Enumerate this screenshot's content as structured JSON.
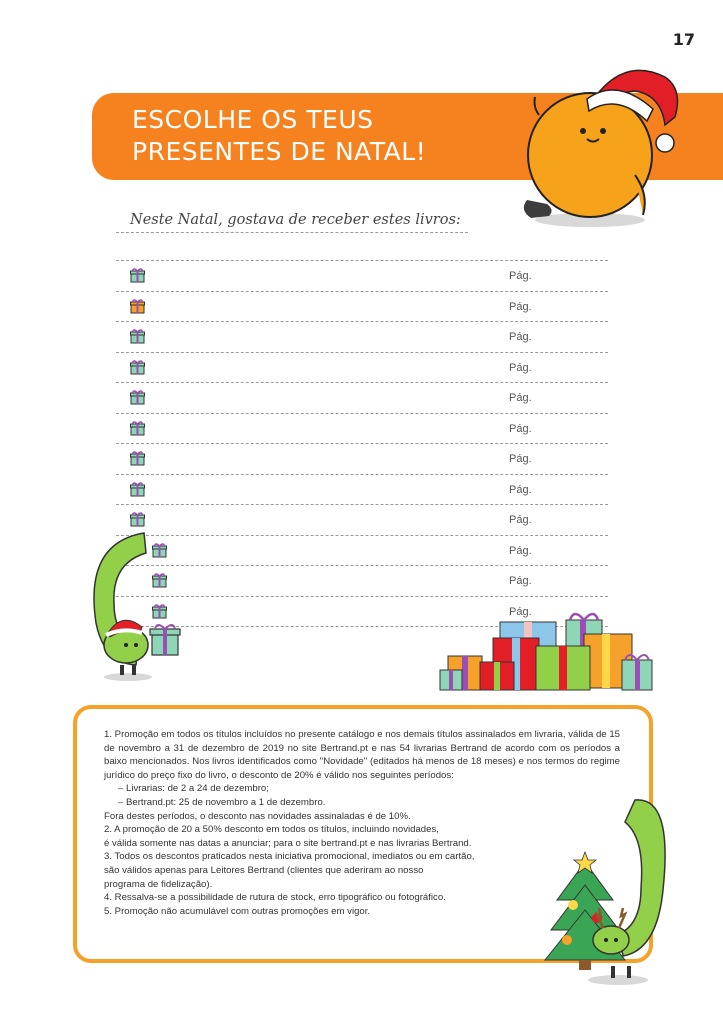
{
  "page": {
    "number": "17"
  },
  "banner": {
    "title_line1": "ESCOLHE OS TEUS",
    "title_line2": "PRESENTES DE NATAL!"
  },
  "wishlist": {
    "heading": "Neste Natal, gostava de receber estes livros:",
    "rows": [
      {
        "page_label": "Pág."
      },
      {
        "page_label": "Pág."
      },
      {
        "page_label": "Pág."
      },
      {
        "page_label": "Pág."
      },
      {
        "page_label": "Pág."
      },
      {
        "page_label": "Pág."
      },
      {
        "page_label": "Pág."
      },
      {
        "page_label": "Pág."
      },
      {
        "page_label": "Pág."
      },
      {
        "page_label": "Pág."
      },
      {
        "page_label": "Pág."
      },
      {
        "page_label": "Pág."
      }
    ]
  },
  "terms": {
    "lines": [
      "1. Promoção em todos os títulos incluídos no presente catálogo e nos demais títulos assinalados em livraria, válida de 15 de novembro a 31 de dezembro de 2019 no site Bertrand.pt e nas 54 livrarias Bertrand de acordo com os períodos a baixo mencionados. Nos livros identificados como \"Novidade\" (editados há menos de 18 meses) e nos termos do regime jurídico do preço fixo do livro, o desconto de 20% é válido nos seguintes períodos:",
      "– Livrarias: de 2 a 24 de dezembro;",
      "– Bertrand.pt: 25 de novembro a 1 de dezembro.",
      "Fora destes períodos, o desconto nas novidades assinaladas é de 10%.",
      "2. A promoção de 20 a 50% desconto em todos os títulos, incluindo novidades,",
      "é válida somente nas datas a anunciar; para o site bertrand.pt e nas livrarias Bertrand.",
      "3. Todos os descontos praticados nesta iniciativa promocional, imediatos ou em cartão,",
      "são válidos apenas para Leitores Bertrand (clientes que aderiram ao nosso",
      "programa de fidelização).",
      "4. Ressalva-se a possibilidade de rutura de stock, erro tipográfico ou fotográfico.",
      "5. Promoção não acumulável com outras promoções em vigor."
    ]
  },
  "colors": {
    "brand_orange": "#f6821f",
    "border_orange": "#f6a22a",
    "character_green": "#93d04a"
  }
}
